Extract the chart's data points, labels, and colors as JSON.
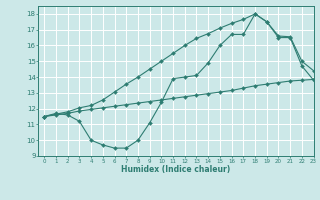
{
  "xlabel": "Humidex (Indice chaleur)",
  "xlim": [
    -0.5,
    23
  ],
  "ylim": [
    9,
    18.5
  ],
  "yticks": [
    9,
    10,
    11,
    12,
    13,
    14,
    15,
    16,
    17,
    18
  ],
  "xticks": [
    0,
    1,
    2,
    3,
    4,
    5,
    6,
    7,
    8,
    9,
    10,
    11,
    12,
    13,
    14,
    15,
    16,
    17,
    18,
    19,
    20,
    21,
    22,
    23
  ],
  "line_color": "#2e7d72",
  "bg_color": "#cce8e8",
  "grid_color": "#ffffff",
  "line1_x": [
    0,
    1,
    2,
    3,
    4,
    5,
    6,
    7,
    8,
    9,
    10,
    11,
    12,
    13,
    14,
    15,
    16,
    17,
    18,
    19,
    20,
    21,
    22,
    23
  ],
  "line1_y": [
    11.5,
    11.7,
    11.6,
    11.2,
    10.0,
    9.7,
    9.5,
    9.5,
    10.0,
    11.1,
    12.4,
    13.9,
    14.0,
    14.1,
    14.9,
    16.0,
    16.7,
    16.7,
    18.0,
    17.5,
    16.5,
    16.5,
    14.7,
    13.8
  ],
  "line2_x": [
    0,
    1,
    2,
    3,
    4,
    5,
    6,
    7,
    8,
    9,
    10,
    11,
    12,
    13,
    14,
    15,
    16,
    17,
    18,
    19,
    20,
    21,
    22,
    23
  ],
  "line2_y": [
    11.5,
    11.6,
    11.7,
    11.85,
    11.95,
    12.05,
    12.15,
    12.25,
    12.35,
    12.45,
    12.55,
    12.65,
    12.75,
    12.85,
    12.95,
    13.05,
    13.15,
    13.3,
    13.45,
    13.55,
    13.65,
    13.75,
    13.8,
    13.85
  ],
  "line3_x": [
    0,
    1,
    2,
    3,
    4,
    5,
    6,
    7,
    8,
    9,
    10,
    11,
    12,
    13,
    14,
    15,
    16,
    17,
    18,
    19,
    20,
    21,
    22,
    23
  ],
  "line3_y": [
    11.5,
    11.65,
    11.8,
    12.05,
    12.2,
    12.55,
    13.05,
    13.55,
    14.0,
    14.5,
    15.0,
    15.5,
    16.0,
    16.45,
    16.75,
    17.1,
    17.4,
    17.65,
    18.0,
    17.5,
    16.6,
    16.55,
    15.0,
    14.4
  ]
}
